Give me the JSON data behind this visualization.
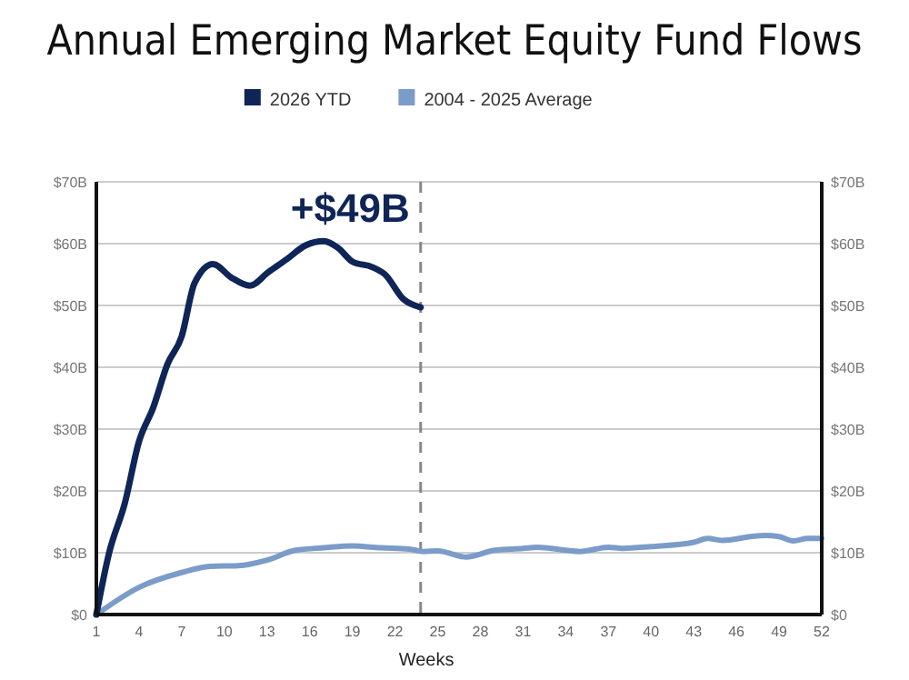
{
  "chart_data": {
    "type": "line",
    "title": "Annual Emerging Market Equity Fund Flows",
    "xlabel": "Weeks",
    "xlim": [
      1,
      52
    ],
    "xticks": [
      1,
      4,
      7,
      10,
      13,
      16,
      19,
      22,
      25,
      28,
      31,
      34,
      37,
      40,
      43,
      46,
      49,
      52
    ],
    "ylim": [
      0,
      70
    ],
    "yticks": [
      {
        "value": 0,
        "label": "$0"
      },
      {
        "value": 10,
        "label": "$10B"
      },
      {
        "value": 20,
        "label": "$20B"
      },
      {
        "value": 30,
        "label": "$30B"
      },
      {
        "value": 40,
        "label": "$40B"
      },
      {
        "value": 50,
        "label": "$50B"
      },
      {
        "value": 60,
        "label": "$60B"
      },
      {
        "value": 70,
        "label": "$70B"
      }
    ],
    "y2lim": [
      0,
      70
    ],
    "y2ticks": [
      {
        "value": 0,
        "label": "$0"
      },
      {
        "value": 10,
        "label": "$10B"
      },
      {
        "value": 20,
        "label": "$20B"
      },
      {
        "value": 30,
        "label": "$30B"
      },
      {
        "value": 40,
        "label": "$40B"
      },
      {
        "value": 50,
        "label": "$50B"
      },
      {
        "value": 60,
        "label": "$60B"
      },
      {
        "value": 70,
        "label": "$70B"
      }
    ],
    "grid": "y",
    "legend": "top",
    "marker": "none",
    "line_style": "solid",
    "series": [
      {
        "name": "2026 YTD",
        "color": "#0f2557",
        "x": [
          1,
          1.9,
          3,
          4,
          5,
          6,
          7,
          7.9,
          9.2,
          10.5,
          11.8,
          13.1,
          14.4,
          15.7,
          17,
          18,
          19,
          20.4,
          21.3,
          22.6,
          23.8
        ],
        "values": [
          0,
          10,
          18,
          28,
          33.5,
          40.5,
          45,
          53.6,
          56.7,
          54.5,
          53.2,
          55.4,
          57.5,
          59.7,
          60.4,
          59.3,
          57.1,
          56.2,
          55,
          51,
          49.7
        ]
      },
      {
        "name": "2004 - 2025 Average",
        "color": "#7b9cc9",
        "x": [
          1,
          4,
          7,
          9,
          11,
          13,
          15,
          17,
          19,
          21,
          23,
          24,
          25,
          27,
          29,
          31,
          32,
          34,
          35,
          37,
          38,
          40,
          43,
          44,
          45,
          47,
          48,
          49,
          50,
          51,
          52
        ],
        "values": [
          0,
          4.4,
          6.8,
          7.8,
          7.9,
          8.8,
          10.4,
          10.8,
          11.1,
          10.8,
          10.6,
          10.2,
          10.3,
          9.3,
          10.4,
          10.7,
          10.9,
          10.4,
          10.2,
          10.9,
          10.7,
          11,
          11.7,
          12.3,
          12,
          12.6,
          12.8,
          12.6,
          11.9,
          12.3,
          12.3
        ]
      }
    ],
    "ref_lines": [
      {
        "axis": "x",
        "value": 23.8,
        "line_style": "dashed",
        "color": "#888888"
      }
    ],
    "annotations": [
      "+$49B"
    ]
  }
}
